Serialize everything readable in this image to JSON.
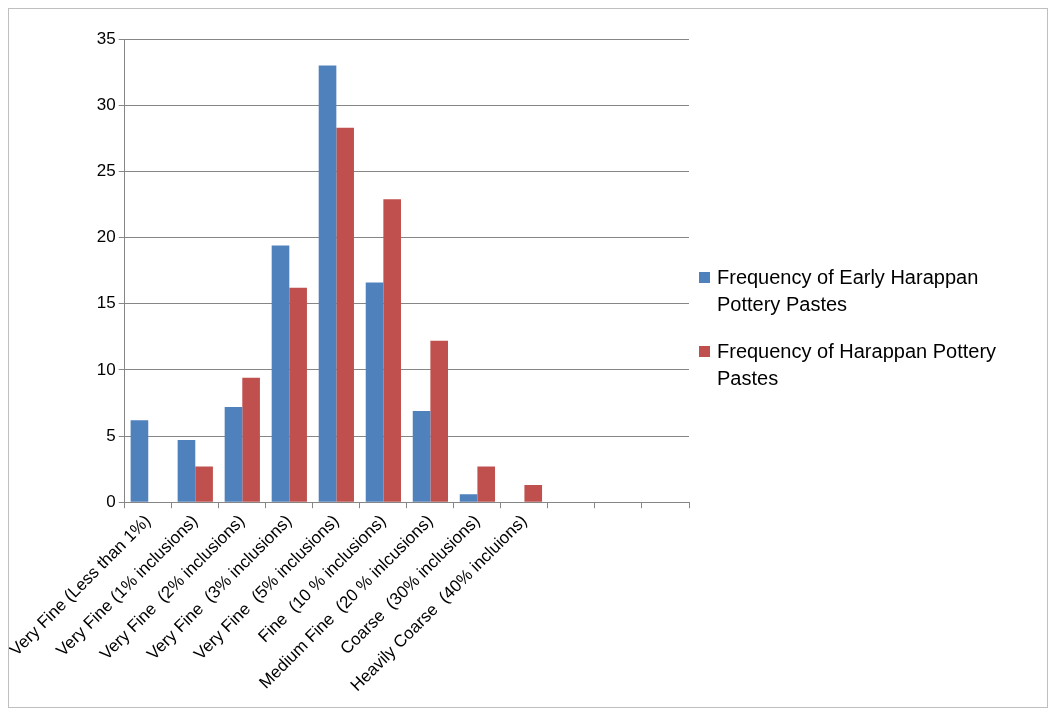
{
  "chart_data": {
    "type": "bar",
    "categories": [
      "Very Fine (Less than 1%)",
      "Very Fine (1% inclusions)",
      "Very Fine  (2% inclusions)",
      "Very Fine  (3% inclusions)",
      "Very Fine  (5% inclusions)",
      "Fine  (10 % inclusions)",
      "Medium Fine  (20 % inlcusions)",
      "Coarse  (30% inclusions)",
      "Heavily Coarse  (40% incluions)",
      null,
      null,
      null
    ],
    "series": [
      {
        "name": "Frequency of Early Harappan Pottery Pastes",
        "color": "#4f81bd",
        "values": [
          6.2,
          4.7,
          7.2,
          19.4,
          33,
          16.6,
          6.9,
          0.6,
          0,
          0,
          0,
          0
        ]
      },
      {
        "name": "Frequency of Harappan Pottery Pastes",
        "color": "#c0504d",
        "values": [
          0,
          2.7,
          9.4,
          16.2,
          28.3,
          22.9,
          12.2,
          2.7,
          1.3,
          0,
          0,
          0
        ]
      }
    ],
    "ylim": [
      0,
      35
    ],
    "yticks": [
      0,
      5,
      10,
      15,
      20,
      25,
      30,
      35
    ],
    "grid": "y",
    "legend": "right"
  }
}
